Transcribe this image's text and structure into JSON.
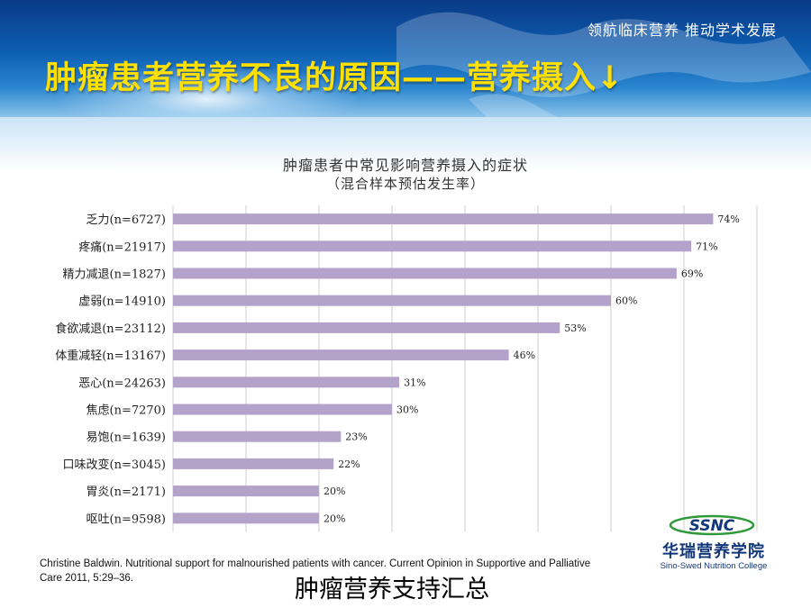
{
  "header": {
    "slogan": "领航临床营养 推动学术发展",
    "title": "肿瘤患者营养不良的原因——营养摄入↓"
  },
  "chart_data": {
    "type": "bar",
    "orientation": "horizontal",
    "title": "肿瘤患者中常见影响营养摄入的症状",
    "subtitle": "（混合样本预估发生率）",
    "xlabel": "",
    "ylabel": "",
    "xlim": [
      0,
      80
    ],
    "grid": true,
    "categories": [
      "乏力(n=6727)",
      "疼痛(n=21917)",
      "精力减退(n=1827)",
      "虚弱(n=14910)",
      "食欲减退(n=23112)",
      "体重减轻(n=13167)",
      "恶心(n=24263)",
      "焦虑(n=7270)",
      "易饱(n=1639)",
      "口味改变(n=3045)",
      "胃炎(n=2171)",
      "呕吐(n=9598)"
    ],
    "values": [
      74,
      71,
      69,
      60,
      53,
      46,
      31,
      30,
      23,
      22,
      20,
      20
    ],
    "data_labels": [
      "74%",
      "71%",
      "69%",
      "60%",
      "53%",
      "46%",
      "31%",
      "30%",
      "23%",
      "22%",
      "20%",
      "20%"
    ],
    "bar_color": "#b3a2c9"
  },
  "citation": "Christine Baldwin. Nutritional support for malnourished patients with cancer. Current Opinion in Supportive and Palliative Care 2011, 5:29–36.",
  "footer": "肿瘤营养支持汇总",
  "logo": {
    "mark": "SSNC",
    "name_cn": "华瑞营养学院",
    "name_en": "Sino-Swed Nutrition College"
  },
  "colors": {
    "title_yellow": "#ffe000",
    "banner_blue": "#0d5fb3",
    "logo_navy": "#13387a",
    "logo_green": "#2e9a3a"
  }
}
